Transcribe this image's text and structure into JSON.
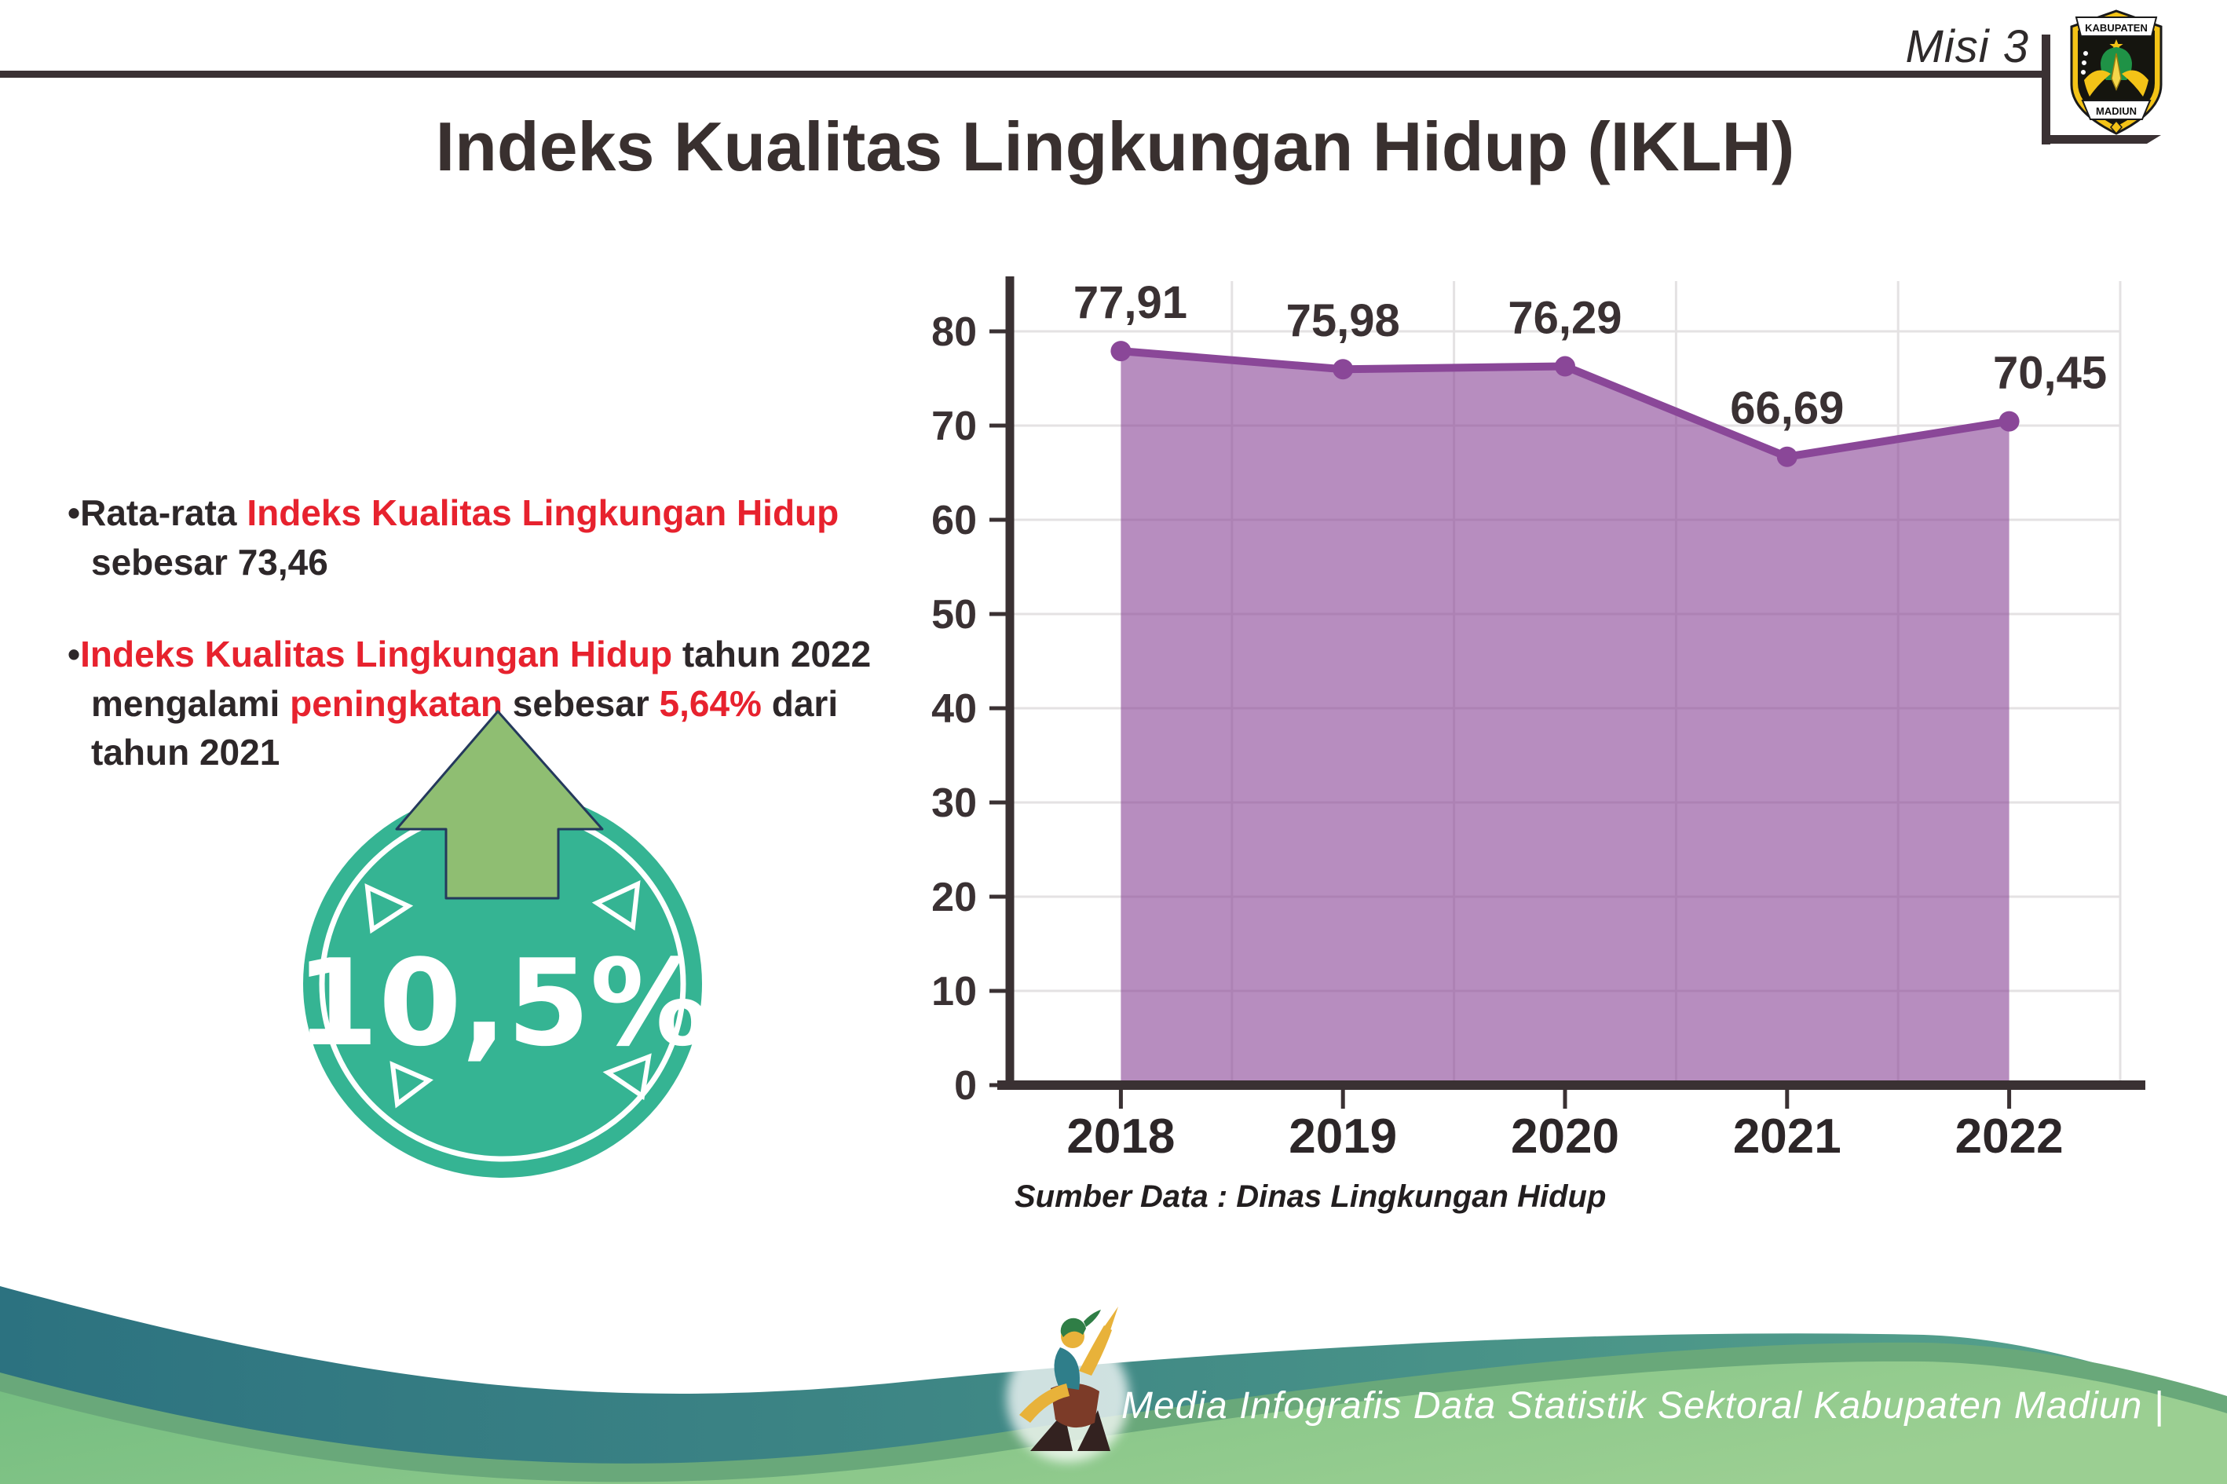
{
  "page": {
    "misi_label": "Misi 3",
    "title": "Indeks Kualitas Lingkungan Hidup (IKLH)"
  },
  "logo": {
    "top_text": "KABUPATEN",
    "bottom_text": "MADIUN"
  },
  "bullets": [
    {
      "segments": [
        {
          "text": "Rata-rata ",
          "style": "dark"
        },
        {
          "text": "Indeks Kualitas Lingkungan Hidup",
          "style": "red"
        },
        {
          "br": true
        },
        {
          "text": "sebesar 73,46",
          "style": "dark"
        }
      ]
    },
    {
      "segments": [
        {
          "text": "Indeks Kualitas Lingkungan Hidup",
          "style": "red"
        },
        {
          "text": " tahun 2022",
          "style": "dark"
        },
        {
          "br": true
        },
        {
          "text": "mengalami ",
          "style": "dark"
        },
        {
          "text": "peningkatan",
          "style": "red"
        },
        {
          "text": " sebesar ",
          "style": "dark"
        },
        {
          "text": "5,64%",
          "style": "red"
        },
        {
          "text": " dari",
          "style": "dark"
        },
        {
          "br": true
        },
        {
          "text": "tahun 2021",
          "style": "dark"
        }
      ]
    }
  ],
  "badge": {
    "value": "10,5%",
    "direction": "up"
  },
  "chart_data": {
    "type": "area",
    "title": "",
    "categories": [
      "2018",
      "2019",
      "2020",
      "2021",
      "2022"
    ],
    "series": [
      {
        "name": "IKLH",
        "values": [
          77.91,
          75.98,
          76.29,
          66.69,
          70.45
        ]
      }
    ],
    "value_labels": [
      "77,91",
      "75,98",
      "76,29",
      "66,69",
      "70,45"
    ],
    "ylim": [
      0,
      80
    ],
    "ytick_step": 10,
    "yticks": [
      "0",
      "10",
      "20",
      "30",
      "40",
      "50",
      "60",
      "70",
      "80"
    ],
    "grid": true,
    "legend": "none",
    "source_note": "Sumber Data : Dinas Lingkungan Hidup"
  },
  "footer": {
    "brand": "Media Infografis Data Statistik Sektoral Kabupaten Madiun |"
  },
  "colors": {
    "text_dark": "#2d2729",
    "accent_red": "#e7222e",
    "chart_line": "#8a4798",
    "chart_fill": "#8a4798",
    "chart_fill_opacity": "0.62",
    "axis": "#3a3133",
    "gridline": "#e4e2e3",
    "badge_teal": "#35b493",
    "arrow_green": "#8fbe72",
    "arrow_outline": "#24395c",
    "wave_teal_dark": "#2c7280",
    "wave_teal_light": "#57a38c",
    "wave_rim": "#69a87a",
    "wave_green_1": "#74bd80",
    "wave_green_2": "#9bcf92"
  }
}
